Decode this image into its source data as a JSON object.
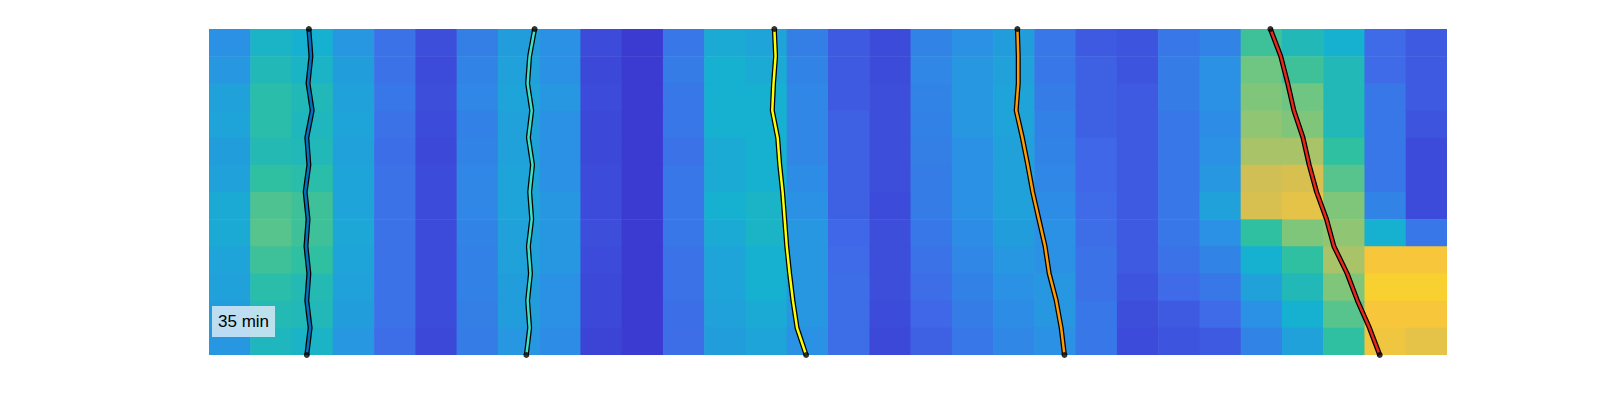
{
  "chart_data": {
    "type": "heatmap",
    "annotation": "35 min",
    "tick_labels": false,
    "xlim": [
      0,
      30
    ],
    "ylim": [
      0,
      12
    ],
    "zlim": [
      0,
      1
    ],
    "cells": [
      [
        0.4,
        0.52,
        0.5,
        0.42,
        0.28,
        0.16,
        0.33,
        0.44,
        0.4,
        0.15,
        0.1,
        0.3,
        0.48,
        0.46,
        0.33,
        0.2,
        0.15,
        0.35,
        0.4,
        0.44,
        0.3,
        0.2,
        0.18,
        0.3,
        0.35,
        0.62,
        0.55,
        0.5,
        0.25,
        0.2
      ],
      [
        0.42,
        0.55,
        0.52,
        0.44,
        0.28,
        0.15,
        0.35,
        0.45,
        0.4,
        0.14,
        0.1,
        0.32,
        0.5,
        0.48,
        0.35,
        0.2,
        0.15,
        0.36,
        0.42,
        0.45,
        0.3,
        0.22,
        0.18,
        0.32,
        0.4,
        0.68,
        0.62,
        0.55,
        0.25,
        0.2
      ],
      [
        0.45,
        0.58,
        0.55,
        0.45,
        0.3,
        0.16,
        0.36,
        0.46,
        0.42,
        0.15,
        0.1,
        0.3,
        0.5,
        0.5,
        0.36,
        0.2,
        0.16,
        0.35,
        0.42,
        0.46,
        0.32,
        0.22,
        0.2,
        0.32,
        0.4,
        0.7,
        0.68,
        0.55,
        0.3,
        0.2
      ],
      [
        0.46,
        0.58,
        0.54,
        0.46,
        0.28,
        0.15,
        0.34,
        0.45,
        0.4,
        0.14,
        0.1,
        0.3,
        0.5,
        0.5,
        0.36,
        0.22,
        0.16,
        0.34,
        0.42,
        0.46,
        0.34,
        0.22,
        0.2,
        0.3,
        0.38,
        0.72,
        0.7,
        0.55,
        0.3,
        0.18
      ],
      [
        0.44,
        0.56,
        0.55,
        0.45,
        0.27,
        0.14,
        0.35,
        0.45,
        0.4,
        0.14,
        0.1,
        0.28,
        0.48,
        0.5,
        0.36,
        0.22,
        0.16,
        0.33,
        0.4,
        0.45,
        0.35,
        0.24,
        0.2,
        0.3,
        0.4,
        0.75,
        0.75,
        0.6,
        0.3,
        0.15
      ],
      [
        0.45,
        0.6,
        0.58,
        0.46,
        0.28,
        0.15,
        0.36,
        0.46,
        0.4,
        0.15,
        0.1,
        0.3,
        0.48,
        0.5,
        0.38,
        0.22,
        0.16,
        0.32,
        0.4,
        0.45,
        0.36,
        0.24,
        0.2,
        0.3,
        0.42,
        0.8,
        0.82,
        0.65,
        0.3,
        0.15
      ],
      [
        0.48,
        0.64,
        0.62,
        0.46,
        0.28,
        0.15,
        0.36,
        0.46,
        0.42,
        0.15,
        0.1,
        0.3,
        0.5,
        0.52,
        0.4,
        0.22,
        0.15,
        0.32,
        0.4,
        0.45,
        0.38,
        0.25,
        0.2,
        0.3,
        0.45,
        0.82,
        0.85,
        0.7,
        0.35,
        0.15
      ],
      [
        0.48,
        0.65,
        0.62,
        0.47,
        0.28,
        0.15,
        0.35,
        0.45,
        0.42,
        0.16,
        0.1,
        0.3,
        0.48,
        0.52,
        0.42,
        0.24,
        0.16,
        0.3,
        0.38,
        0.44,
        0.4,
        0.26,
        0.2,
        0.3,
        0.4,
        0.6,
        0.7,
        0.72,
        0.5,
        0.3
      ],
      [
        0.46,
        0.62,
        0.6,
        0.46,
        0.28,
        0.15,
        0.34,
        0.45,
        0.42,
        0.15,
        0.1,
        0.28,
        0.46,
        0.5,
        0.42,
        0.25,
        0.16,
        0.28,
        0.36,
        0.42,
        0.4,
        0.28,
        0.2,
        0.28,
        0.35,
        0.5,
        0.6,
        0.75,
        0.9,
        0.9
      ],
      [
        0.45,
        0.58,
        0.56,
        0.45,
        0.28,
        0.15,
        0.34,
        0.44,
        0.4,
        0.14,
        0.1,
        0.28,
        0.46,
        0.5,
        0.42,
        0.26,
        0.16,
        0.26,
        0.34,
        0.4,
        0.42,
        0.28,
        0.18,
        0.25,
        0.3,
        0.45,
        0.55,
        0.7,
        0.92,
        0.92
      ],
      [
        0.44,
        0.56,
        0.55,
        0.44,
        0.28,
        0.15,
        0.33,
        0.44,
        0.4,
        0.14,
        0.1,
        0.27,
        0.45,
        0.48,
        0.42,
        0.26,
        0.15,
        0.24,
        0.32,
        0.38,
        0.42,
        0.3,
        0.16,
        0.2,
        0.25,
        0.4,
        0.5,
        0.65,
        0.9,
        0.9
      ],
      [
        0.42,
        0.54,
        0.52,
        0.42,
        0.26,
        0.14,
        0.32,
        0.42,
        0.38,
        0.13,
        0.1,
        0.26,
        0.44,
        0.46,
        0.4,
        0.26,
        0.14,
        0.22,
        0.3,
        0.36,
        0.4,
        0.3,
        0.15,
        0.18,
        0.2,
        0.35,
        0.45,
        0.6,
        0.88,
        0.85
      ]
    ],
    "series": [
      {
        "type": "line",
        "color": "#0072bd",
        "x": [
          2.42,
          2.47,
          2.4,
          2.5,
          2.37,
          2.42,
          2.33,
          2.4,
          2.35,
          2.42,
          2.37,
          2.45,
          2.37
        ],
        "y": [
          0,
          1,
          2,
          3,
          4,
          5,
          6,
          7,
          8,
          9,
          10,
          11,
          12
        ]
      },
      {
        "type": "line",
        "color": "#3fe0c5",
        "x": [
          7.89,
          7.77,
          7.72,
          7.82,
          7.74,
          7.84,
          7.77,
          7.82,
          7.74,
          7.79,
          7.72,
          7.77,
          7.69
        ],
        "y": [
          0,
          1,
          2,
          3,
          4,
          5,
          6,
          7,
          8,
          9,
          10,
          11,
          12
        ]
      },
      {
        "type": "line",
        "color": "#ffff00",
        "x": [
          13.7,
          13.73,
          13.68,
          13.65,
          13.78,
          13.83,
          13.9,
          13.95,
          14.0,
          14.07,
          14.15,
          14.25,
          14.47
        ],
        "y": [
          0,
          1,
          2,
          3,
          4,
          5,
          6,
          7,
          8,
          9,
          10,
          11,
          12
        ]
      },
      {
        "type": "line",
        "color": "#ff9a00",
        "x": [
          19.59,
          19.61,
          19.61,
          19.56,
          19.71,
          19.84,
          19.96,
          20.11,
          20.26,
          20.36,
          20.53,
          20.65,
          20.73
        ],
        "y": [
          0,
          1,
          2,
          3,
          4,
          5,
          6,
          7,
          8,
          9,
          10,
          11,
          12
        ]
      },
      {
        "type": "line",
        "color": "#e8261a",
        "x": [
          25.72,
          25.97,
          26.14,
          26.29,
          26.51,
          26.66,
          26.84,
          27.08,
          27.26,
          27.58,
          27.83,
          28.12,
          28.37
        ],
        "y": [
          0,
          1,
          2,
          3,
          4,
          5,
          6,
          7,
          8,
          9,
          10,
          11,
          12
        ]
      }
    ]
  }
}
